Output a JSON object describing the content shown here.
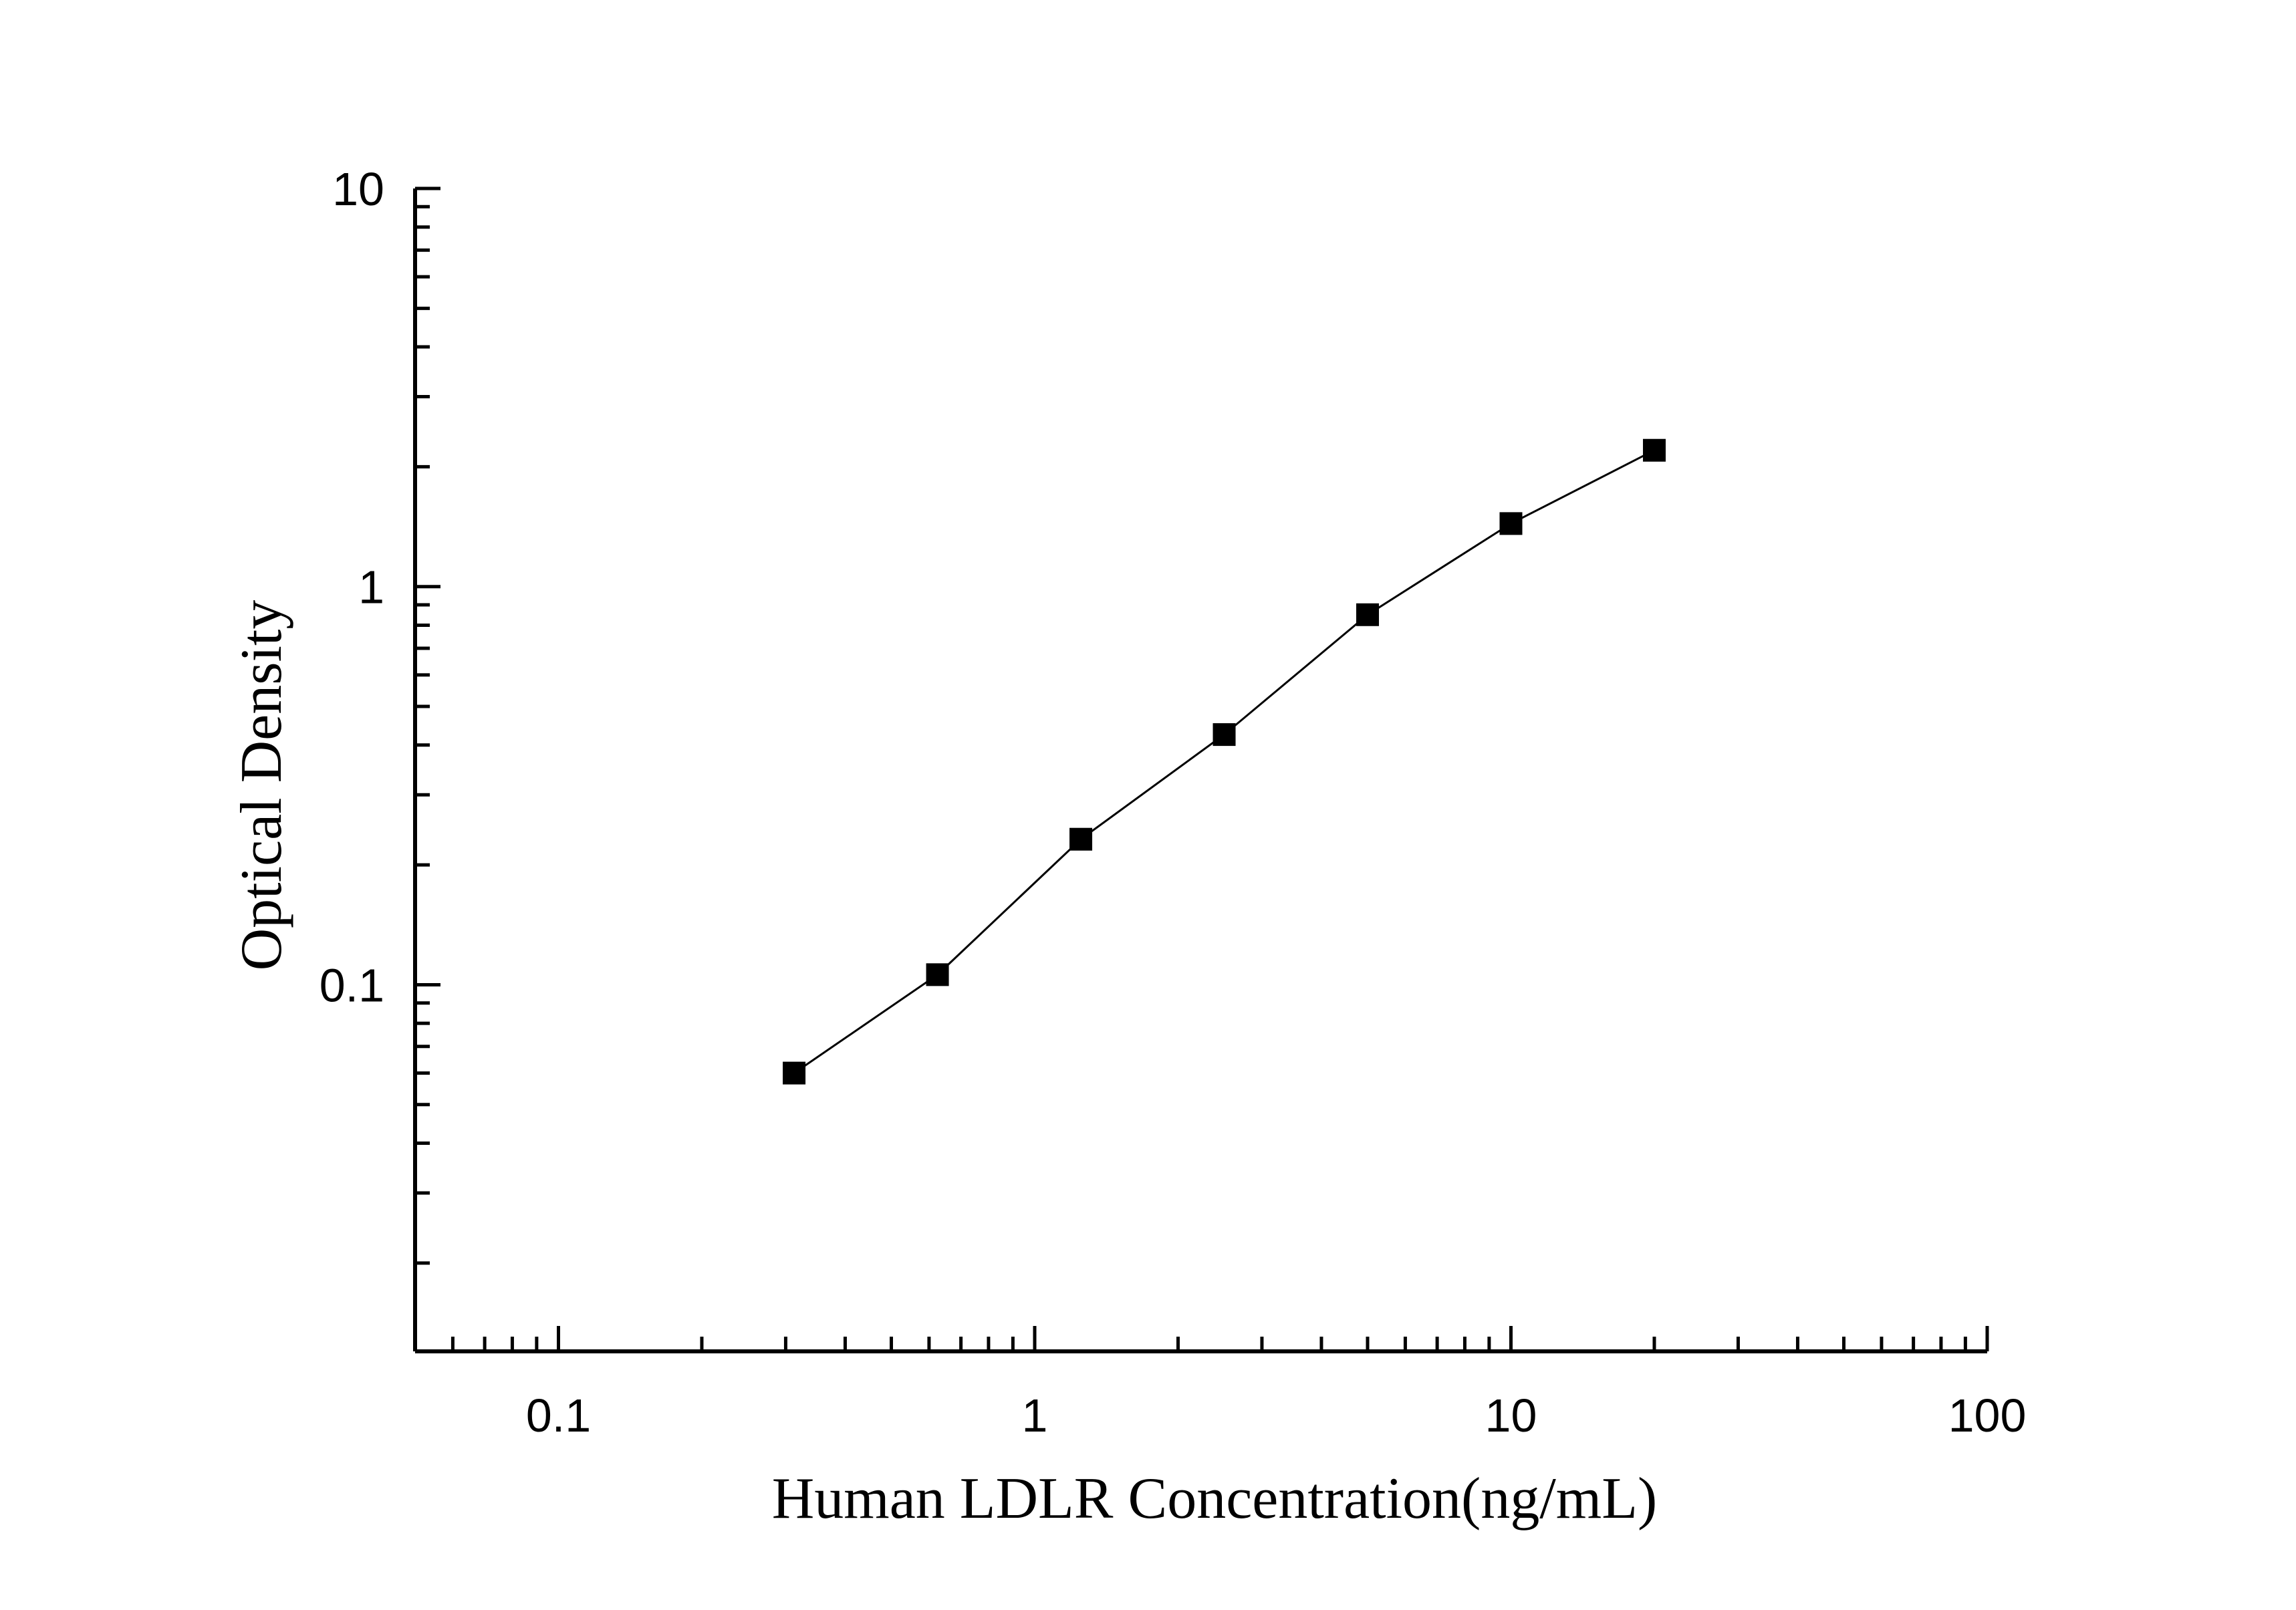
{
  "chart_data": {
    "type": "line",
    "xlabel": "Human LDLR Concentration(ng/mL)",
    "ylabel": "Optical Density",
    "x_scale": "log",
    "y_scale": "log",
    "xlim": [
      0.05,
      100
    ],
    "ylim": [
      0.012,
      10
    ],
    "x_ticks": [
      {
        "value": 0.1,
        "label": "0.1"
      },
      {
        "value": 1,
        "label": "1"
      },
      {
        "value": 10,
        "label": "10"
      },
      {
        "value": 100,
        "label": "100"
      }
    ],
    "y_ticks": [
      {
        "value": 0.1,
        "label": "0.1"
      },
      {
        "value": 1,
        "label": "1"
      },
      {
        "value": 10,
        "label": "10"
      }
    ],
    "grid": false,
    "marker": "square",
    "series": [
      {
        "x": [
          0.3125,
          0.625,
          1.25,
          2.5,
          5,
          10,
          20
        ],
        "y": [
          0.06,
          0.106,
          0.232,
          0.425,
          0.85,
          1.44,
          2.2
        ]
      }
    ],
    "colors": {
      "line": "#000000",
      "marker": "#000000",
      "axis": "#000000"
    }
  }
}
